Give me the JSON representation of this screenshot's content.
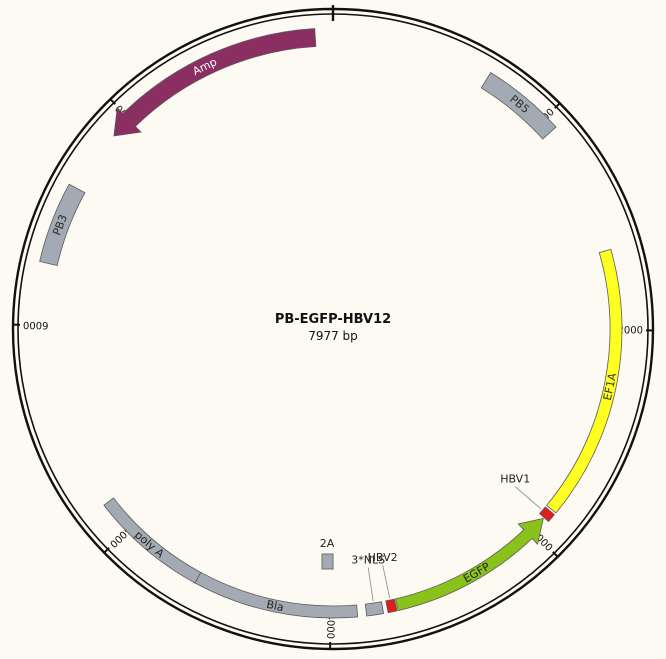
{
  "plasmid": {
    "name": "PB-EGFP-HBV12",
    "size_label": "7977 bp",
    "length_bp": 7977
  },
  "ticks": [
    {
      "label": "1000",
      "bp": 1000
    },
    {
      "label": "2000",
      "bp": 2000
    },
    {
      "label": "3000",
      "bp": 3000
    },
    {
      "label": "4000",
      "bp": 4000
    },
    {
      "label": "5000",
      "bp": 5000
    },
    {
      "label": "6000",
      "bp": 6000
    },
    {
      "label": "7000",
      "bp": 7000
    }
  ],
  "features": [
    {
      "id": "amp",
      "label": "Amp",
      "start_bp": 6900,
      "end_bp": 7900,
      "ring": "outer",
      "direction": "reverse",
      "color": "#8b2f62",
      "label_color": "#ffffff"
    },
    {
      "id": "pbs",
      "label": "PB5",
      "start_bp": 700,
      "end_bp": 1060,
      "ring": "outer",
      "direction": "none",
      "color": "#a3aab3",
      "label_color": "#2b2b2b"
    },
    {
      "id": "ef1a",
      "label": "EF1A",
      "start_bp": 1640,
      "end_bp": 2870,
      "ring": "inner",
      "direction": "none",
      "color": "#ffff22",
      "label_color": "#333333"
    },
    {
      "id": "hbv1",
      "label": "HBV1",
      "start_bp": 2880,
      "end_bp": 2920,
      "ring": "inner",
      "direction": "none",
      "color": "#e01c1c",
      "label_color": "#222222"
    },
    {
      "id": "egfp",
      "label": "EGFP",
      "start_bp": 2925,
      "end_bp": 3700,
      "ring": "inner",
      "direction": "reverse",
      "color": "#88c21a",
      "label_color": "#222222"
    },
    {
      "id": "hbv2",
      "label": "HBV2",
      "start_bp": 3705,
      "end_bp": 3745,
      "ring": "inner",
      "direction": "none",
      "color": "#e01c1c",
      "label_color": "#222222"
    },
    {
      "id": "nls",
      "label": "3*NLS",
      "start_bp": 3765,
      "end_bp": 3840,
      "ring": "inner",
      "direction": "none",
      "color": "#a3aab3",
      "label_color": "#222222"
    },
    {
      "id": "t2a",
      "label": "2A",
      "start_bp": 3840,
      "end_bp": 3870,
      "ring": "label_only",
      "direction": "none",
      "color": "#a3aab3",
      "label_color": "#222222"
    },
    {
      "id": "bla",
      "label": "Bla",
      "start_bp": 3880,
      "end_bp": 4620,
      "ring": "inner",
      "direction": "none",
      "color": "#a3aab3",
      "label_color": "#222222"
    },
    {
      "id": "polya",
      "label": "poly A",
      "start_bp": 4620,
      "end_bp": 5150,
      "ring": "inner",
      "direction": "none",
      "color": "#a3aab3",
      "label_color": "#222222"
    },
    {
      "id": "pb3",
      "label": "PB3",
      "start_bp": 6270,
      "end_bp": 6620,
      "ring": "outer",
      "direction": "none",
      "color": "#a3aab3",
      "label_color": "#2b2b2b"
    }
  ]
}
